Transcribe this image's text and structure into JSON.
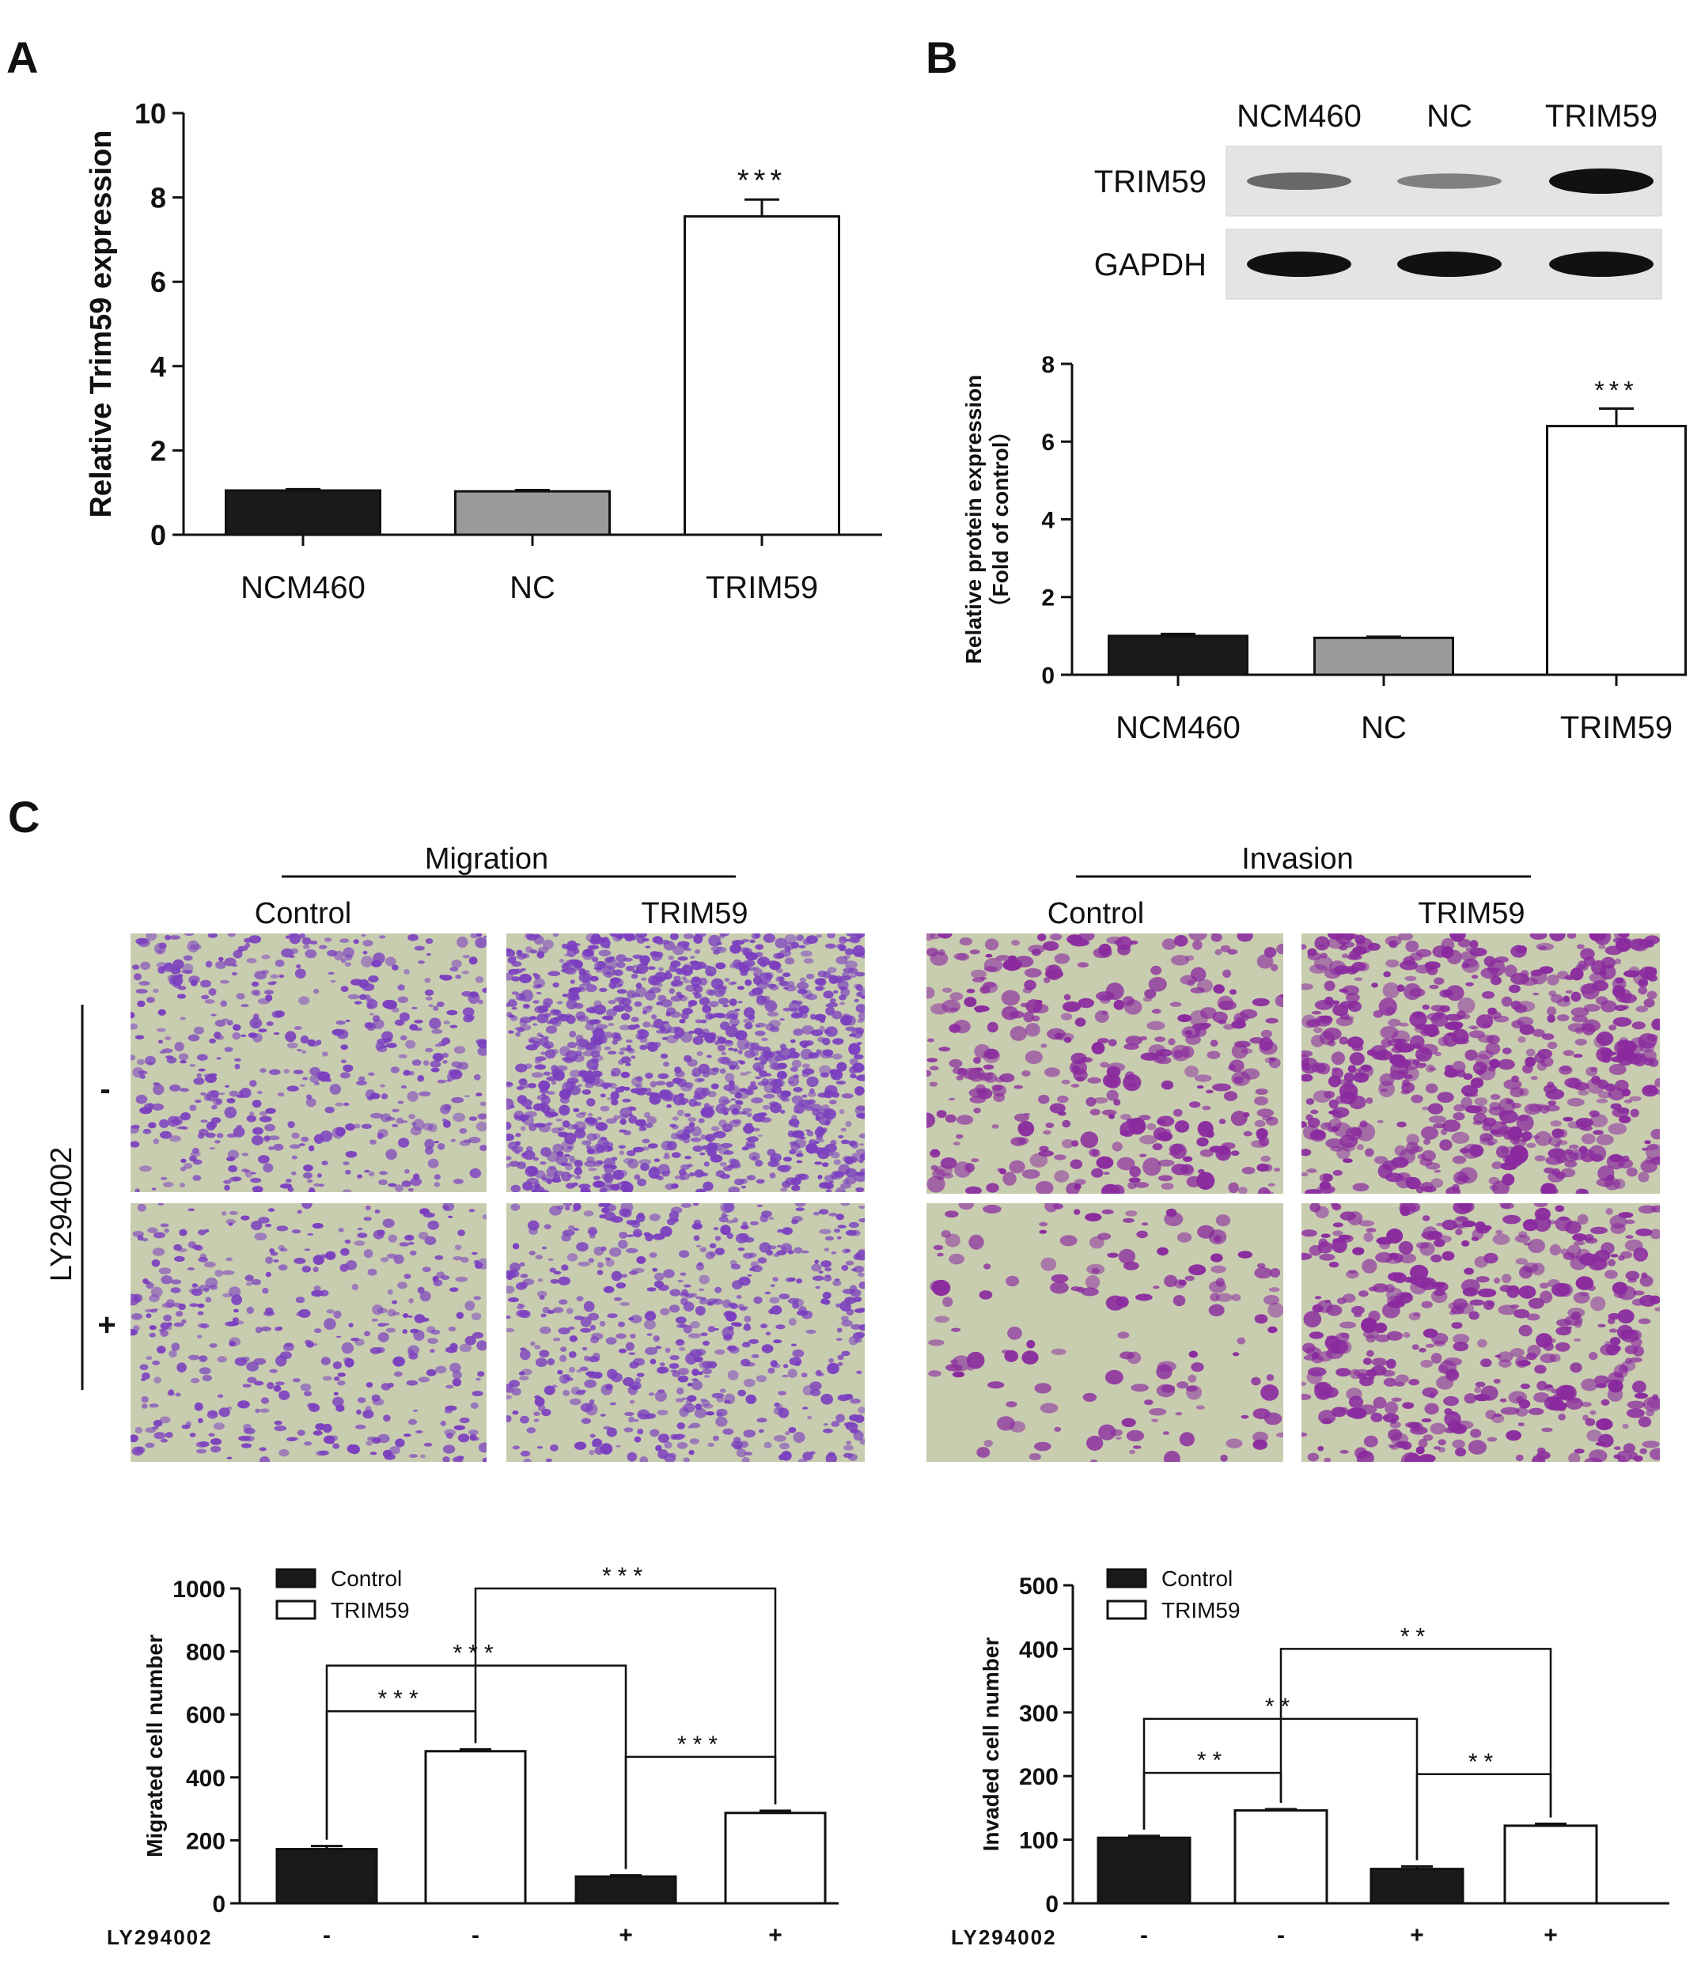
{
  "panels": {
    "A": {
      "letter": "A"
    },
    "B": {
      "letter": "B"
    },
    "C": {
      "letter": "C"
    }
  },
  "western_blot": {
    "lanes": [
      "NCM460",
      "NC",
      "TRIM59"
    ],
    "rows": [
      {
        "label": "TRIM59",
        "intensity": [
          0.45,
          0.3,
          1.0
        ]
      },
      {
        "label": "GAPDH",
        "intensity": [
          1.0,
          1.0,
          1.0
        ]
      }
    ]
  },
  "micrographs": {
    "group_titles": [
      "Migration",
      "Invasion"
    ],
    "column_labels": [
      "Control",
      "TRIM59",
      "Control",
      "TRIM59"
    ],
    "side_label": "LY294002",
    "row_labels": [
      "-",
      "+"
    ],
    "colors": {
      "background": "#c9cdb0",
      "stain_migration": "#7b3fbf",
      "stain_invasion": "#8a2a9e"
    }
  },
  "chart_data": [
    {
      "id": "A",
      "type": "bar",
      "categories": [
        "NCM460",
        "NC",
        "TRIM59"
      ],
      "values": [
        1.05,
        1.03,
        7.55
      ],
      "errors": [
        0.03,
        0.03,
        0.4
      ],
      "colors": [
        "#1a1a1a",
        "#9a9a9a",
        "#ffffff"
      ],
      "ylabel": "Relative Trim59 expression",
      "ylim": [
        0,
        10
      ],
      "yticks": [
        "0",
        "2",
        "4",
        "6",
        "8",
        "10"
      ],
      "annotations": [
        {
          "category": "TRIM59",
          "text": "***"
        }
      ]
    },
    {
      "id": "B",
      "type": "bar",
      "categories": [
        "NCM460",
        "NC",
        "TRIM59"
      ],
      "values": [
        1.0,
        0.95,
        6.4
      ],
      "errors": [
        0.05,
        0.03,
        0.45
      ],
      "colors": [
        "#1a1a1a",
        "#9a9a9a",
        "#ffffff"
      ],
      "ylabel_lines": [
        "Relative protein expression",
        "（Fold of control）"
      ],
      "ylim": [
        0,
        8
      ],
      "yticks": [
        "0",
        "2",
        "4",
        "6",
        "8"
      ],
      "annotations": [
        {
          "category": "TRIM59",
          "text": "***"
        }
      ]
    },
    {
      "id": "C-migration",
      "type": "bar",
      "x_label": "LY294002",
      "x_values": [
        "-",
        "-",
        "+",
        "+"
      ],
      "series_of_bar": [
        "Control",
        "TRIM59",
        "Control",
        "TRIM59"
      ],
      "values": [
        172,
        483,
        85,
        287
      ],
      "errors": [
        10,
        6,
        4,
        7
      ],
      "legend": [
        "Control",
        "TRIM59"
      ],
      "ylabel": "Migrated cell number",
      "ylim": [
        0,
        1000
      ],
      "yticks": [
        "0",
        "200",
        "400",
        "600",
        "800",
        "1000"
      ],
      "comparisons": [
        {
          "from": 0,
          "to": 1,
          "level": 610,
          "text": "***"
        },
        {
          "from": 0,
          "to": 2,
          "level": 755,
          "text": "***"
        },
        {
          "from": 1,
          "to": 3,
          "level": 1000,
          "text": "***"
        },
        {
          "from": 2,
          "to": 3,
          "level": 465,
          "text": "***"
        }
      ]
    },
    {
      "id": "C-invasion",
      "type": "bar",
      "x_label": "LY294002",
      "x_values": [
        "-",
        "-",
        "+",
        "+"
      ],
      "series_of_bar": [
        "Control",
        "TRIM59",
        "Control",
        "TRIM59"
      ],
      "values": [
        103,
        146,
        54,
        122
      ],
      "errors": [
        3,
        2,
        4,
        3
      ],
      "legend": [
        "Control",
        "TRIM59"
      ],
      "ylabel": "Invaded cell number",
      "ylim": [
        0,
        500
      ],
      "yticks": [
        "0",
        "100",
        "200",
        "300",
        "400",
        "500"
      ],
      "comparisons": [
        {
          "from": 0,
          "to": 1,
          "level": 205,
          "text": "**"
        },
        {
          "from": 0,
          "to": 2,
          "level": 290,
          "text": "**"
        },
        {
          "from": 1,
          "to": 3,
          "level": 400,
          "text": "**"
        },
        {
          "from": 2,
          "to": 3,
          "level": 203,
          "text": "**"
        }
      ]
    }
  ]
}
